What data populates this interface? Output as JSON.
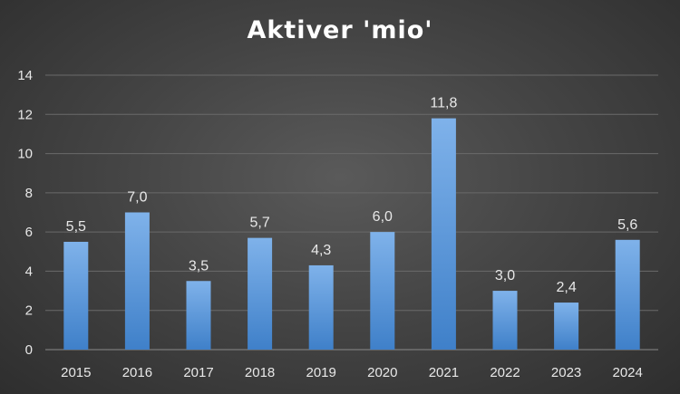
{
  "chart_data": {
    "type": "bar",
    "title": "Aktiver 'mio'",
    "categories": [
      "2015",
      "2016",
      "2017",
      "2018",
      "2019",
      "2020",
      "2021",
      "2022",
      "2023",
      "2024"
    ],
    "values": [
      5.5,
      7.0,
      3.5,
      5.7,
      4.3,
      6.0,
      11.8,
      3.0,
      2.4,
      5.6
    ],
    "data_labels": [
      "5,5",
      "7,0",
      "3,5",
      "5,7",
      "4,3",
      "6,0",
      "11,8",
      "3,0",
      "2,4",
      "5,6"
    ],
    "y_ticks": [
      "0",
      "2",
      "4",
      "6",
      "8",
      "10",
      "12",
      "14"
    ],
    "ylim": [
      0,
      14
    ],
    "grid": true,
    "legend": "none",
    "colors": {
      "bar_top": "#7fb2ea",
      "bar_bottom": "#3f80c9",
      "background": "#3c3c3c"
    }
  }
}
